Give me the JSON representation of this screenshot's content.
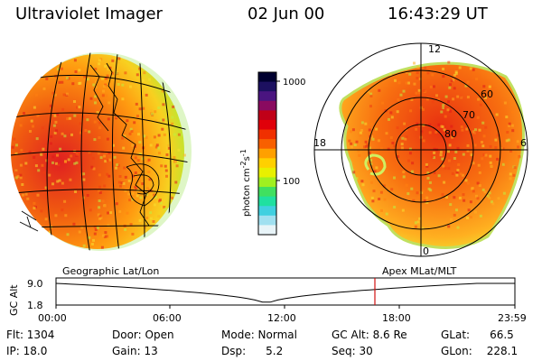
{
  "header": {
    "title": "Ultraviolet Imager",
    "date": "02 Jun 00",
    "time": "16:43:29 UT"
  },
  "colorbar": {
    "unit": "photon cm",
    "unit_sup1": "-2",
    "unit_mid": "s",
    "unit_sup2": "-1",
    "ticks": [
      "1000",
      "100"
    ],
    "colors": [
      "#000030",
      "#1c1060",
      "#4a1580",
      "#8a0a60",
      "#c00018",
      "#e0000a",
      "#f03000",
      "#f86000",
      "#ffa000",
      "#ffd000",
      "#e8f000",
      "#a0f020",
      "#40e060",
      "#20e0a0",
      "#40d0e0",
      "#a0e0f0",
      "#e8f4f8"
    ]
  },
  "left_panel": {
    "label": "Geographic Lat/Lon"
  },
  "right_panel": {
    "label": "Apex MLat/MLT",
    "mlt_labels": [
      "12",
      "18",
      "6",
      "0"
    ],
    "lat_labels": [
      "60",
      "70",
      "80"
    ]
  },
  "altitude_plot": {
    "ylabel": "GC Alt",
    "yticks": [
      "9.0",
      "1.8"
    ],
    "xticks": [
      "00:00",
      "06:00",
      "12:00",
      "18:00",
      "23:59"
    ],
    "marker_color": "#d01010"
  },
  "info": {
    "flt": "Flt: 1304",
    "ip": "IP: 18.0",
    "door": "Door: Open",
    "gain": "Gain: 13",
    "mode": "Mode: Normal",
    "dsp_label": "Dsp:",
    "dsp_value": "5.2",
    "gcalt": "GC Alt: 8.6 Re",
    "seq": "Seq: 30",
    "glat_label": "GLat:",
    "glat_value": "66.5",
    "glon_label": "GLon:",
    "glon_value": "228.1"
  }
}
